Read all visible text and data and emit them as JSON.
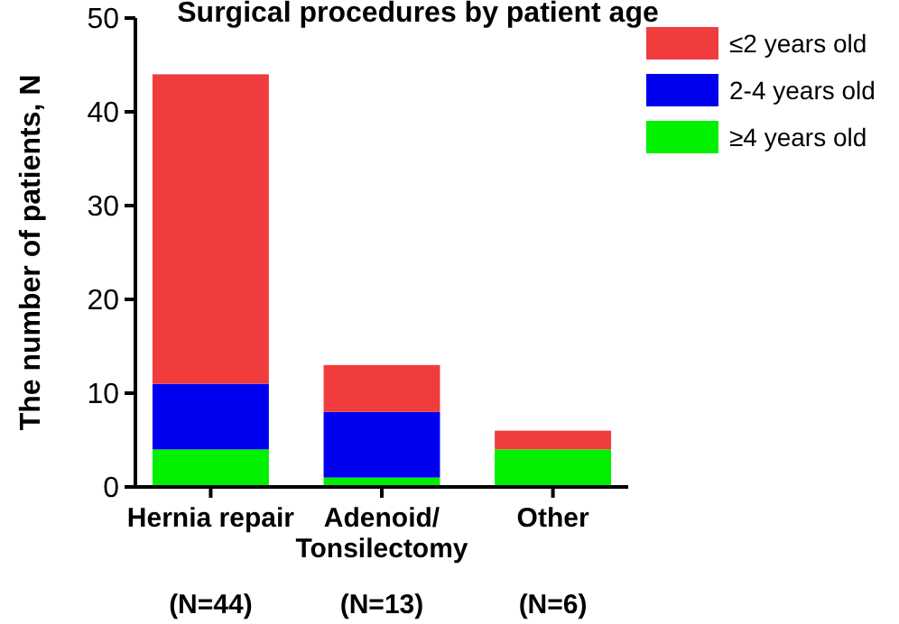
{
  "chart_data": {
    "type": "bar",
    "title": "Surgical procedures by patient age",
    "ylabel": "The number of patients, N",
    "categories": [
      "Hernia repair",
      "Adenoid/\nTonsilectomy",
      "Other"
    ],
    "stacked": true,
    "legend": "top right",
    "ylim": [
      0,
      50
    ],
    "yticks": [
      0,
      10,
      20,
      30,
      40,
      50
    ],
    "series": [
      {
        "name": "≥4 years old",
        "color": "#00f000",
        "values": [
          4,
          1,
          4
        ]
      },
      {
        "name": "2-4 years old",
        "color": "#0000f0",
        "values": [
          7,
          7,
          0
        ]
      },
      {
        "name": "≤2 years old",
        "color": "#f03c3c",
        "values": [
          33,
          5,
          2
        ]
      }
    ],
    "annotations": [
      "(N=44)",
      "(N=13)",
      "(N=6)"
    ]
  }
}
